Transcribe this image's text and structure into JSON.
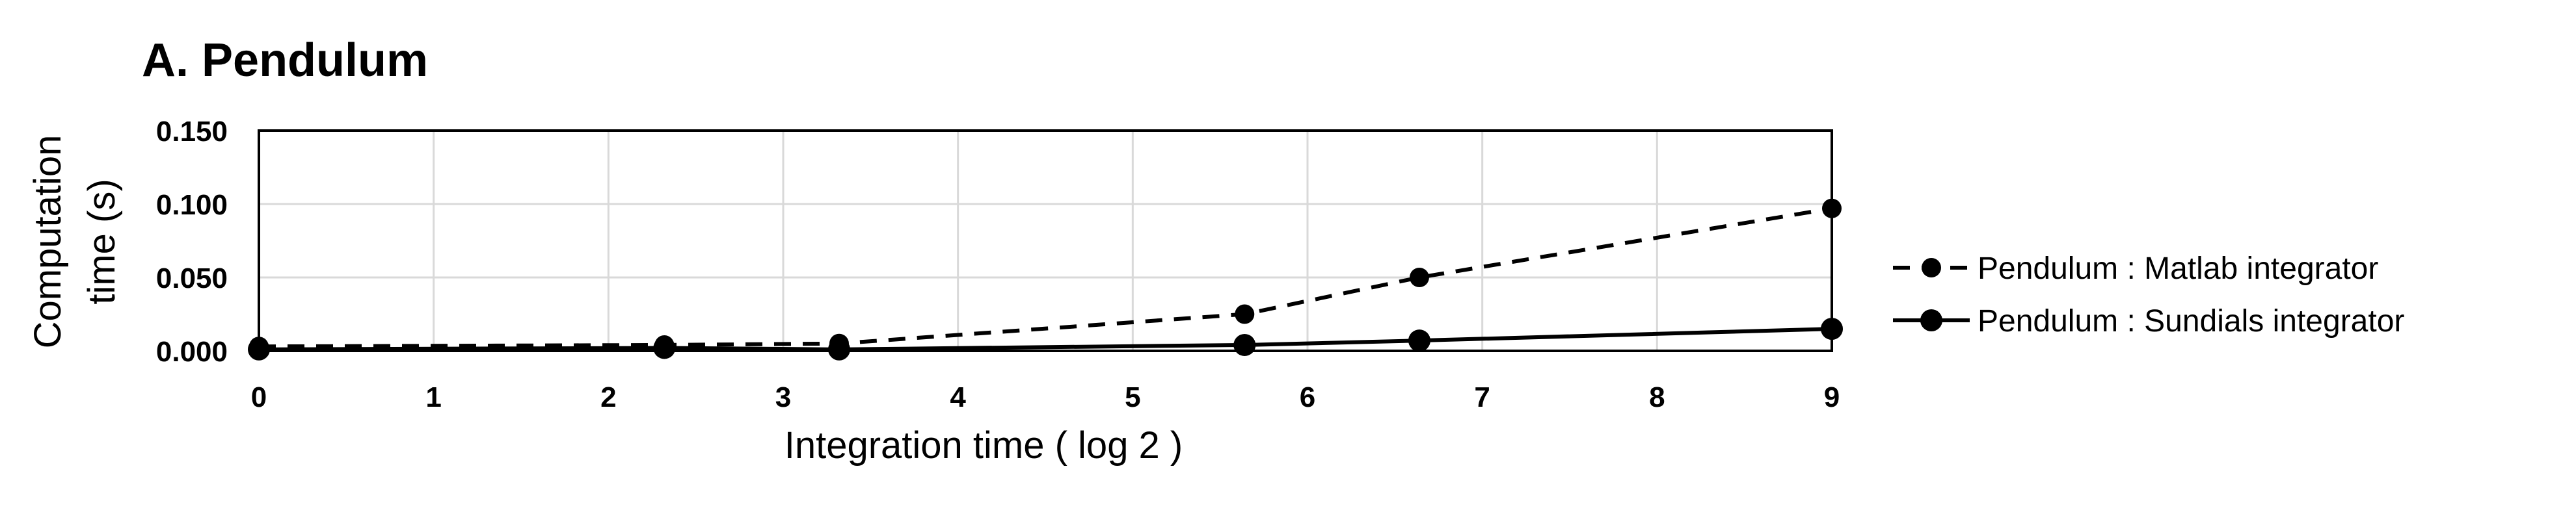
{
  "chart_data": {
    "type": "line",
    "title": "A. Pendulum",
    "xlabel": "Integration time ( log 2 )",
    "ylabel_lines": [
      "Computation",
      "time (s)"
    ],
    "xlim": [
      0,
      9
    ],
    "ylim": [
      0,
      0.15
    ],
    "x_ticks": [
      0,
      1,
      2,
      3,
      4,
      5,
      6,
      7,
      8,
      9
    ],
    "x_tick_labels": [
      "0",
      "1",
      "2",
      "3",
      "4",
      "5",
      "6",
      "7",
      "8",
      "9"
    ],
    "y_ticks": [
      0,
      0.05,
      0.1,
      0.15
    ],
    "y_tick_labels": [
      "0.000",
      "0.050",
      "0.100",
      "0.150"
    ],
    "grid": true,
    "legend_position": "right",
    "series": [
      {
        "name": "Pendulum : Matlab integrator",
        "style": "dashed",
        "color": "#000000",
        "x": [
          0,
          2.32,
          3.32,
          5.64,
          6.64,
          9
        ],
        "y": [
          0.003,
          0.004,
          0.005,
          0.025,
          0.05,
          0.097
        ]
      },
      {
        "name": "Pendulum : Sundials integrator",
        "style": "solid",
        "color": "#000000",
        "x": [
          0,
          2.32,
          3.32,
          5.64,
          6.64,
          9
        ],
        "y": [
          0.001,
          0.002,
          0.001,
          0.004,
          0.007,
          0.015
        ]
      }
    ]
  }
}
